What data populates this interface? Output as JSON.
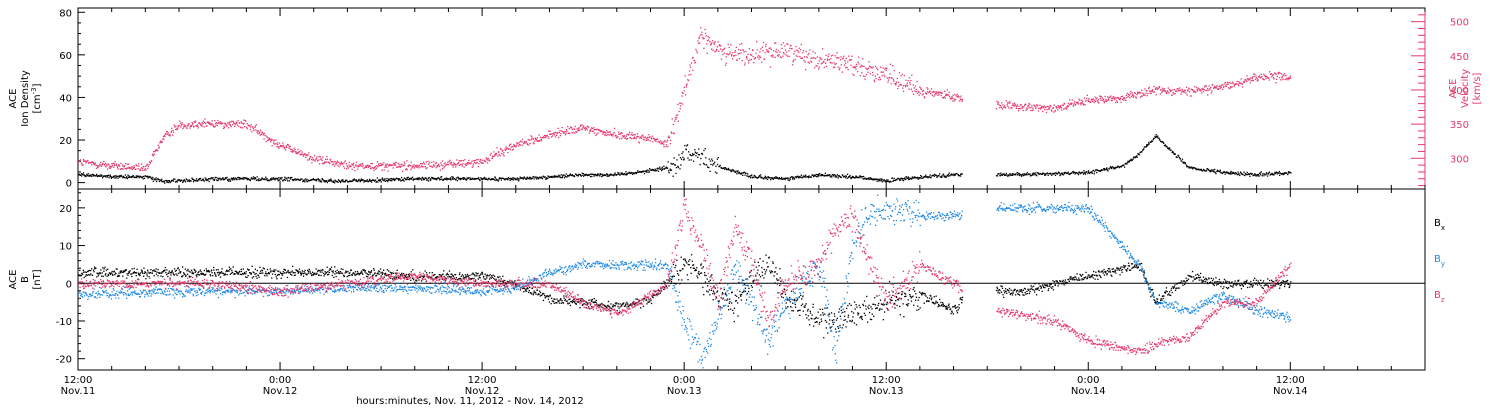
{
  "figure": {
    "xlabel": "hours:minutes, Nov. 11, 2012 - Nov. 14, 2012",
    "x_range_hours": [
      0,
      80
    ],
    "x_ticks": [
      {
        "t": 0,
        "time": "12:00",
        "date": "Nov.11"
      },
      {
        "t": 12,
        "time": "0:00",
        "date": "Nov.12"
      },
      {
        "t": 24,
        "time": "12:00",
        "date": "Nov.12"
      },
      {
        "t": 36,
        "time": "0:00",
        "date": "Nov.13"
      },
      {
        "t": 48,
        "time": "12:00",
        "date": "Nov.13"
      },
      {
        "t": 60,
        "time": "0:00",
        "date": "Nov.14"
      },
      {
        "t": 72,
        "time": "12:00",
        "date": "Nov.14"
      }
    ]
  },
  "chart_data": [
    {
      "type": "scatter",
      "panel": "top",
      "ylabel_left": [
        "ACE",
        "Ion Density",
        "[cm^-3]"
      ],
      "ylabel_right": [
        "ACE",
        "Velocity",
        "[km/s]"
      ],
      "left_axis": {
        "range": [
          -3,
          82
        ],
        "ticks": [
          0,
          20,
          40,
          60,
          80
        ]
      },
      "right_axis": {
        "range": [
          255,
          520
        ],
        "ticks": [
          300,
          350,
          400,
          450,
          500
        ],
        "color": "#e5386a"
      },
      "series": [
        {
          "axis": "left",
          "color": "#000000",
          "x": [
            0,
            2,
            4,
            5,
            8,
            12,
            16,
            20,
            24,
            26,
            28,
            30,
            32,
            34,
            35.5,
            36,
            37,
            38,
            40,
            42,
            44,
            46,
            48,
            50,
            52,
            53,
            56,
            60,
            62,
            63,
            64,
            66,
            68,
            70,
            72
          ],
          "y": [
            4,
            3,
            3,
            1,
            2,
            2,
            1,
            2,
            2,
            2,
            3,
            4,
            4,
            6,
            8,
            15,
            12,
            8,
            3,
            2,
            4,
            3,
            1,
            3,
            4,
            4,
            4,
            5,
            8,
            14,
            22,
            7,
            5,
            4,
            5
          ]
        },
        {
          "axis": "right",
          "color": "#e5386a",
          "x": [
            0,
            2,
            4,
            5,
            6,
            8,
            10,
            12,
            14,
            16,
            18,
            20,
            22,
            24,
            25,
            26,
            28,
            30,
            32,
            34,
            35,
            36,
            37,
            38,
            40,
            42,
            44,
            46,
            48,
            50,
            52,
            53,
            56,
            58,
            60,
            62,
            64,
            66,
            68,
            70,
            72
          ],
          "y": [
            295,
            290,
            285,
            330,
            350,
            352,
            350,
            320,
            300,
            290,
            290,
            290,
            292,
            295,
            310,
            320,
            335,
            345,
            335,
            330,
            320,
            405,
            480,
            460,
            450,
            460,
            445,
            440,
            420,
            400,
            390,
            385,
            375,
            375,
            385,
            390,
            400,
            400,
            405,
            420,
            420
          ]
        }
      ]
    },
    {
      "type": "scatter",
      "panel": "bottom",
      "ylabel_left": [
        "ACE",
        "B",
        "[nT]"
      ],
      "axis": {
        "range": [
          -23,
          25
        ],
        "ticks": [
          -20,
          -10,
          0,
          10,
          20
        ]
      },
      "legend": [
        "Bx",
        "By",
        "Bz"
      ],
      "legend_placement": "right",
      "series": [
        {
          "name": "Bx",
          "color": "#000000",
          "x": [
            0,
            4,
            8,
            12,
            16,
            20,
            24,
            26,
            28,
            30,
            32,
            34,
            36,
            37,
            38,
            39,
            40,
            41,
            42,
            44,
            46,
            48,
            50,
            52,
            53,
            56,
            58,
            60,
            62,
            63,
            64,
            66,
            68,
            70,
            72
          ],
          "y": [
            3,
            3,
            3,
            3,
            3,
            2,
            2,
            0,
            -4,
            -5,
            -6,
            -4,
            5,
            3,
            -3,
            -5,
            2,
            5,
            -3,
            -10,
            -8,
            -5,
            -3,
            -7,
            -2,
            -2,
            0,
            2,
            4,
            5,
            -5,
            2,
            0,
            0,
            0
          ]
        },
        {
          "name": "By",
          "color": "#1e88e5",
          "x": [
            0,
            4,
            8,
            12,
            16,
            20,
            24,
            26,
            28,
            30,
            32,
            34,
            35,
            36,
            37,
            38,
            39,
            40,
            41,
            42,
            44,
            45,
            46,
            47,
            48,
            50,
            52,
            53,
            56,
            58,
            60,
            62,
            63,
            64,
            66,
            68,
            70,
            72
          ],
          "y": [
            -3,
            -2,
            -2,
            -2,
            -1,
            -1,
            -2,
            -1,
            3,
            5,
            5,
            5,
            5,
            -10,
            -20,
            -10,
            5,
            -5,
            -15,
            -5,
            5,
            -18,
            10,
            20,
            19,
            18,
            18,
            20,
            20,
            20,
            20,
            10,
            5,
            -5,
            -7,
            -3,
            -7,
            -9
          ]
        },
        {
          "name": "Bz",
          "color": "#e5386a",
          "x": [
            0,
            4,
            8,
            12,
            16,
            20,
            24,
            26,
            28,
            30,
            32,
            34,
            35,
            36,
            37,
            38,
            39,
            40,
            41,
            42,
            44,
            45,
            46,
            47,
            48,
            50,
            52,
            53,
            54,
            56,
            58,
            60,
            62,
            63,
            64,
            66,
            68,
            70,
            72
          ],
          "y": [
            0,
            0,
            0,
            -2,
            0,
            2,
            0,
            0,
            0,
            -5,
            -8,
            -3,
            0,
            20,
            10,
            -5,
            15,
            5,
            -10,
            0,
            5,
            15,
            18,
            5,
            -5,
            5,
            0,
            -3,
            -7,
            -8,
            -10,
            -15,
            -17,
            -18,
            -16,
            -14,
            -5,
            -5,
            5
          ]
        }
      ]
    }
  ]
}
